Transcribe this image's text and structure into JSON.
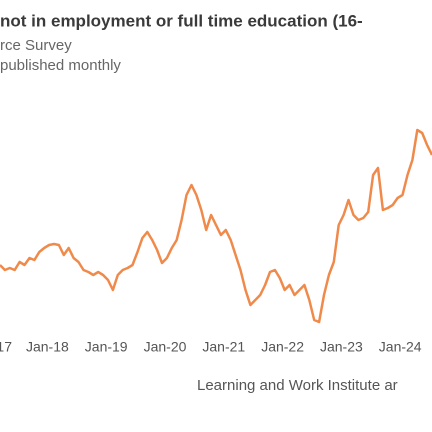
{
  "chart_data": {
    "type": "line",
    "title": "not in employment or full time education (16-",
    "subtitle": [
      "rce Survey",
      "published monthly"
    ],
    "x_labels": [
      "17",
      "Jan-18",
      "Jan-19",
      "Jan-20",
      "Jan-21",
      "Jan-22",
      "Jan-23",
      "Jan-24"
    ],
    "source": "Learning and Work Institute ar",
    "color": "#f08a4b",
    "ylim": [
      0,
      240
    ],
    "values": [
      75,
      70,
      72,
      70,
      78,
      75,
      82,
      80,
      88,
      92,
      95,
      96,
      95,
      85,
      92,
      82,
      78,
      70,
      68,
      65,
      68,
      65,
      60,
      50,
      65,
      70,
      72,
      75,
      88,
      102,
      108,
      100,
      90,
      77,
      82,
      92,
      100,
      120,
      145,
      155,
      145,
      130,
      110,
      125,
      115,
      105,
      110,
      100,
      85,
      70,
      50,
      35,
      40,
      45,
      55,
      68,
      70,
      62,
      50,
      55,
      45,
      50,
      55,
      40,
      20,
      18,
      45,
      65,
      78,
      115,
      125,
      140,
      125,
      120,
      122,
      128,
      165,
      172,
      130,
      132,
      135,
      142,
      145,
      165,
      180,
      210,
      207,
      195,
      185
    ]
  }
}
